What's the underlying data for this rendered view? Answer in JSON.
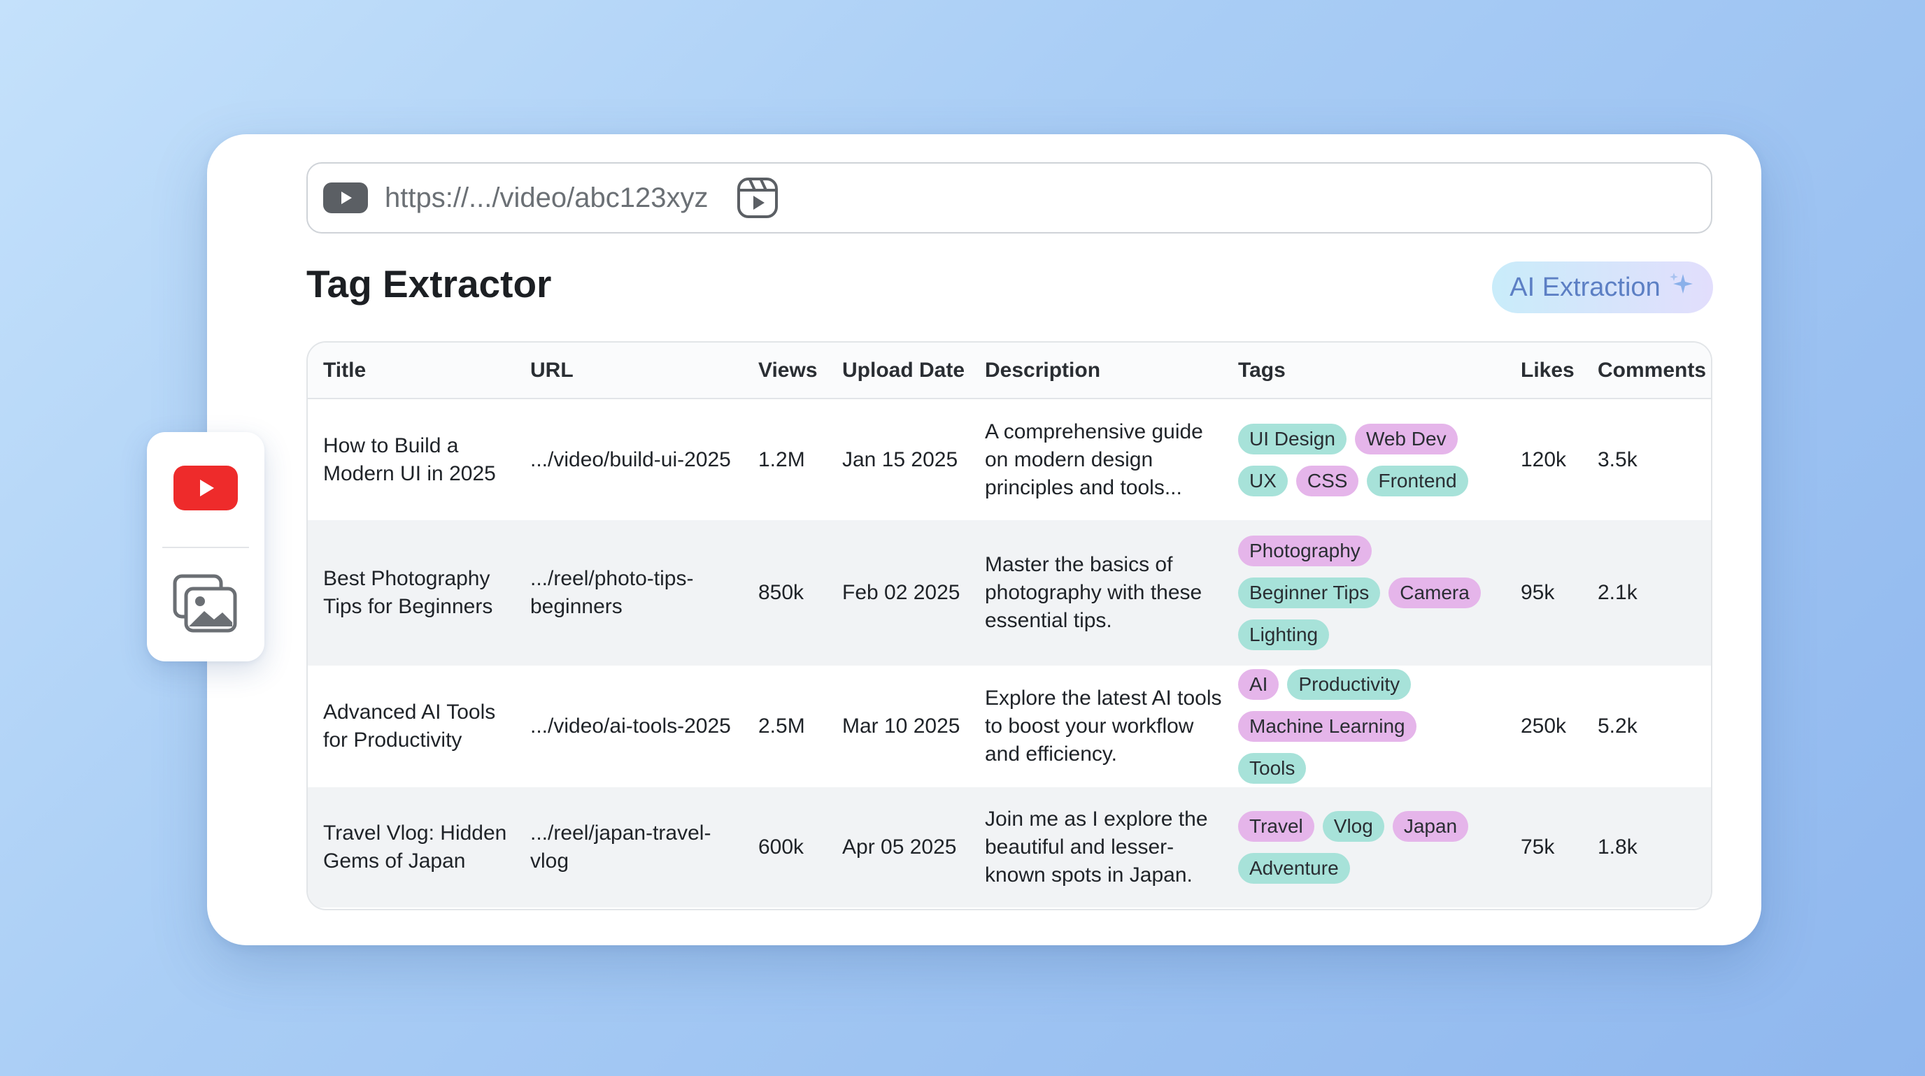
{
  "url_bar": {
    "url": "https://.../video/abc123xyz",
    "source_icon": "video-play-icon",
    "action_icon": "reel-icon"
  },
  "page": {
    "title": "Tag Extractor",
    "ai_button_label": "AI Extraction",
    "ai_button_icon": "sparkle-icon"
  },
  "table": {
    "columns": [
      "Title",
      "URL",
      "Views",
      "Upload Date",
      "Description",
      "Tags",
      "Likes",
      "Comments"
    ],
    "rows": [
      {
        "title": "How to Build a Modern UI in 2025",
        "url": ".../video/build-ui-2025",
        "views": "1.2M",
        "upload_date": "Jan 15 2025",
        "description": "A comprehensive guide on modern design principles and tools...",
        "tags": [
          {
            "label": "UI Design",
            "color": "#a7e2d9"
          },
          {
            "label": "Web Dev",
            "color": "#e5b5ea"
          },
          {
            "label": "UX",
            "color": "#a7e2d9"
          },
          {
            "label": "CSS",
            "color": "#e5b5ea"
          },
          {
            "label": "Frontend",
            "color": "#a7e2d9"
          }
        ],
        "likes": "120k",
        "comments": "3.5k"
      },
      {
        "title": "Best Photography Tips for Beginners",
        "url": ".../reel/photo-tips-beginners",
        "views": "850k",
        "upload_date": "Feb 02 2025",
        "description": "Master the basics of photography with these essential tips.",
        "tags": [
          {
            "label": "Photography",
            "color": "#e5b5ea"
          },
          {
            "label": "Beginner Tips",
            "color": "#a7e2d9"
          },
          {
            "label": "Camera",
            "color": "#e5b5ea"
          },
          {
            "label": "Lighting",
            "color": "#a7e2d9"
          }
        ],
        "likes": "95k",
        "comments": "2.1k"
      },
      {
        "title": "Advanced AI Tools for Productivity",
        "url": ".../video/ai-tools-2025",
        "views": "2.5M",
        "upload_date": "Mar 10 2025",
        "description": "Explore the latest AI tools to boost your workflow and efficiency.",
        "tags": [
          {
            "label": "AI",
            "color": "#e5b5ea"
          },
          {
            "label": "Productivity",
            "color": "#a7e2d9"
          },
          {
            "label": "Machine Learning",
            "color": "#e5b5ea"
          },
          {
            "label": "Tools",
            "color": "#a7e2d9"
          }
        ],
        "likes": "250k",
        "comments": "5.2k"
      },
      {
        "title": "Travel Vlog: Hidden Gems of Japan",
        "url": ".../reel/japan-travel-vlog",
        "views": "600k",
        "upload_date": "Apr 05 2025",
        "description": "Join me as I explore the beautiful and lesser-known spots in Japan.",
        "tags": [
          {
            "label": "Travel",
            "color": "#e5b5ea"
          },
          {
            "label": "Vlog",
            "color": "#a7e2d9"
          },
          {
            "label": "Japan",
            "color": "#e5b5ea"
          },
          {
            "label": "Adventure",
            "color": "#a7e2d9"
          }
        ],
        "likes": "75k",
        "comments": "1.8k"
      }
    ]
  },
  "side_panel": {
    "items": [
      {
        "icon": "youtube-icon",
        "color": "#ee2b2b"
      },
      {
        "icon": "image-gallery-icon"
      }
    ]
  }
}
